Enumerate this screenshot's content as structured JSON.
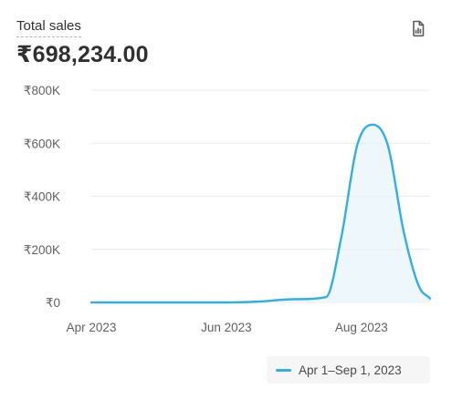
{
  "metric": {
    "title": "Total sales",
    "value": "₹698,234.00"
  },
  "icons": {
    "export": "report-export-icon"
  },
  "colors": {
    "series": "#33aee4",
    "grid": "#ebebeb",
    "fill": "#e6f4fb"
  },
  "legend": {
    "label": "Apr 1–Sep 1, 2023"
  },
  "chart_data": {
    "type": "area",
    "title": "",
    "xlabel": "",
    "ylabel": "",
    "ylim": [
      0,
      800000
    ],
    "xlim": [
      "2023-04-01",
      "2023-09-01"
    ],
    "y_ticks": [
      0,
      200000,
      400000,
      600000,
      800000
    ],
    "y_tick_labels": [
      "₹0",
      "₹200K",
      "₹400K",
      "₹600K",
      "₹800K"
    ],
    "x_tick_labels": [
      "Apr 2023",
      "Jun 2023",
      "Aug 2023"
    ],
    "x_tick_dates": [
      "2023-04-01",
      "2023-06-01",
      "2023-08-01"
    ],
    "grid": true,
    "legend_position": "bottom-right",
    "series": [
      {
        "name": "Apr 1–Sep 1, 2023",
        "x": [
          "2023-04-01",
          "2023-05-01",
          "2023-06-01",
          "2023-06-15",
          "2023-07-01",
          "2023-07-16",
          "2023-07-23",
          "2023-07-30",
          "2023-08-06",
          "2023-08-13",
          "2023-08-20",
          "2023-08-27",
          "2023-09-01"
        ],
        "values": [
          0,
          0,
          0,
          3000,
          12000,
          20000,
          250000,
          590000,
          670000,
          590000,
          270000,
          60000,
          15000
        ]
      }
    ]
  }
}
